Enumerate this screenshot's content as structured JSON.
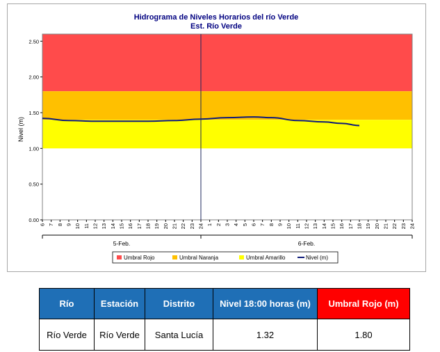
{
  "colors": {
    "red_zone": "#ff4b4b",
    "orange_zone": "#ffc000",
    "yellow_zone": "#ffff00",
    "line": "#0d1a7a",
    "table_header_blue": "#1f6fb6",
    "table_header_red": "#ff0000"
  },
  "chart_data": {
    "type": "line",
    "title": "Hidrograma de Niveles Horarios del río Verde",
    "subtitle": "Est. Río Verde",
    "ylabel": "Nivel (m)",
    "xlabel": "",
    "ylim": [
      0,
      2.6
    ],
    "y_ticks": [
      "0.00",
      "0.50",
      "1.00",
      "1.50",
      "2.00",
      "2.50"
    ],
    "x_ticks": [
      "6",
      "7",
      "8",
      "9",
      "10",
      "11",
      "12",
      "13",
      "14",
      "15",
      "16",
      "17",
      "18",
      "19",
      "20",
      "21",
      "22",
      "23",
      "24",
      "1",
      "2",
      "3",
      "4",
      "5",
      "6",
      "7",
      "8",
      "9",
      "10",
      "11",
      "12",
      "13",
      "14",
      "15",
      "16",
      "17",
      "18",
      "19",
      "20",
      "21",
      "22",
      "23",
      "24"
    ],
    "day_labels": [
      "5-Feb.",
      "6-Feb."
    ],
    "grid": false,
    "legend_position": "bottom",
    "bands": [
      {
        "name": "Umbral Rojo",
        "from": 1.8,
        "to": 2.6
      },
      {
        "name": "Umbral Naranja",
        "from": 1.4,
        "to": 1.8
      },
      {
        "name": "Umbral Amarillo",
        "from": 1.0,
        "to": 1.4
      }
    ],
    "series": [
      {
        "name": "Nivel (m)",
        "x": [
          "5-Feb 06:00",
          "5-Feb 09:00",
          "5-Feb 12:00",
          "5-Feb 15:00",
          "5-Feb 18:00",
          "5-Feb 21:00",
          "6-Feb 00:00",
          "6-Feb 03:00",
          "6-Feb 06:00",
          "6-Feb 08:00",
          "6-Feb 11:00",
          "6-Feb 14:00",
          "6-Feb 16:00",
          "6-Feb 18:00"
        ],
        "values": [
          1.42,
          1.39,
          1.38,
          1.38,
          1.38,
          1.39,
          1.41,
          1.43,
          1.44,
          1.43,
          1.39,
          1.37,
          1.35,
          1.32
        ]
      }
    ]
  },
  "table": {
    "headers": [
      "Río",
      "Estación",
      "Distrito",
      "Nivel 18:00 horas (m)",
      "Umbral Rojo (m)"
    ],
    "row": [
      "Río Verde",
      "Río Verde",
      "Santa Lucía",
      "1.32",
      "1.80"
    ]
  }
}
